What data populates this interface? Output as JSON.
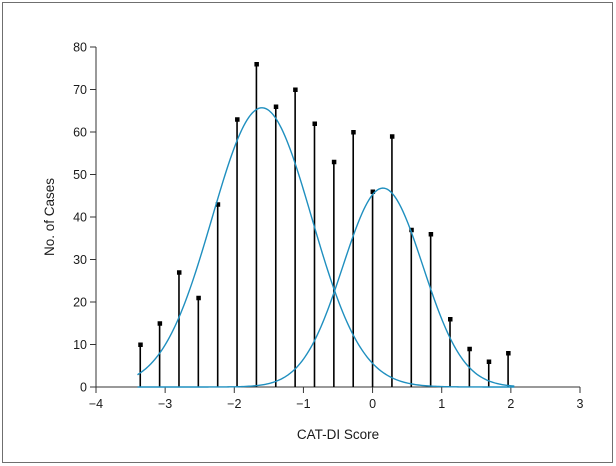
{
  "chart_data": {
    "type": "bar",
    "title": "",
    "xlabel": "CAT-DI Score",
    "ylabel": "No. of Cases",
    "xlim": [
      -4,
      3
    ],
    "ylim": [
      0,
      80
    ],
    "x_ticks": [
      -4,
      -3,
      -2,
      -1,
      0,
      1,
      2,
      3
    ],
    "x_tick_labels": [
      "−4",
      "−3",
      "−2",
      "−1",
      "0",
      "1",
      "2",
      "3"
    ],
    "y_ticks": [
      0,
      10,
      20,
      30,
      40,
      50,
      60,
      70,
      80
    ],
    "y_tick_labels": [
      "0",
      "10",
      "20",
      "30",
      "40",
      "50",
      "60",
      "70",
      "80"
    ],
    "grid": false,
    "legend": "none",
    "colors": {
      "bars": "#000000",
      "curves": "#1f8fbf",
      "axes": "#333333",
      "frame": "#6f6f6f"
    },
    "series": [
      {
        "kind": "stem",
        "x": [
          -3.36,
          -3.08,
          -2.8,
          -2.52,
          -2.24,
          -1.96,
          -1.68,
          -1.4,
          -1.12,
          -0.84,
          -0.56,
          -0.28,
          0.0,
          0.28,
          0.56,
          0.84,
          1.12,
          1.4,
          1.68,
          1.96
        ],
        "values": [
          10,
          15,
          27,
          21,
          43,
          63,
          76,
          66,
          70,
          62,
          53,
          60,
          46,
          59,
          37,
          36,
          16,
          9,
          6,
          8
        ]
      },
      {
        "kind": "normal-curve",
        "mean": -1.6,
        "sd": 0.72,
        "peak": 65.7,
        "x_range": [
          -3.4,
          2.05
        ]
      },
      {
        "kind": "normal-curve",
        "mean": 0.15,
        "sd": 0.58,
        "peak": 46.8,
        "x_range": [
          -3.4,
          2.05
        ]
      }
    ]
  }
}
